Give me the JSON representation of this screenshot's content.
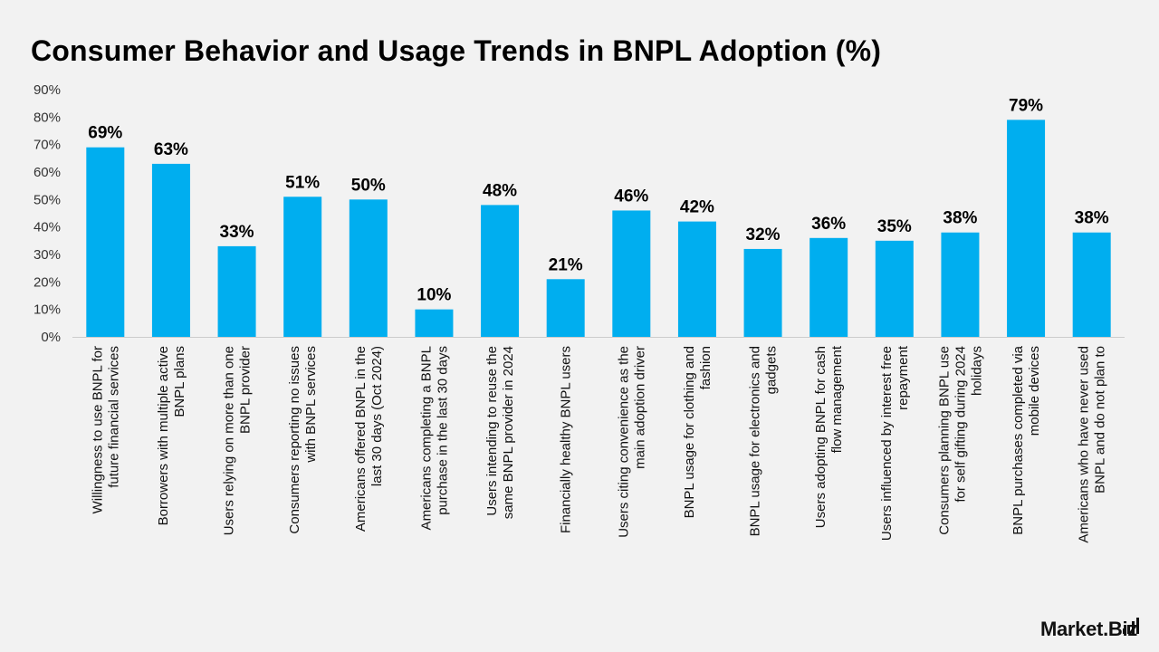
{
  "title": "Consumer Behavior and Usage Trends in BNPL Adoption (%)",
  "brand": {
    "name": "Market.Biz",
    "icon": "bar-chart-logo-icon"
  },
  "colors": {
    "bar": "#00aeef",
    "background": "#f2f2f2",
    "axis": "#cccccc"
  },
  "chart_data": {
    "type": "bar",
    "title": "Consumer Behavior and Usage Trends in BNPL Adoption (%)",
    "xlabel": "",
    "ylabel": "",
    "ylim": [
      0,
      90
    ],
    "yticks": [
      "0%",
      "10%",
      "20%",
      "30%",
      "40%",
      "50%",
      "60%",
      "70%",
      "80%",
      "90%"
    ],
    "grid": false,
    "legend": "none",
    "categories": [
      [
        "Willingness to use BNPL for",
        "future financial services"
      ],
      [
        "Borrowers with multiple active",
        "BNPL plans"
      ],
      [
        "Users relying on more than one",
        "BNPL provider"
      ],
      [
        "Consumers reporting no issues",
        "with BNPL services"
      ],
      [
        "Americans offered BNPL in the",
        "last 30 days (Oct 2024)"
      ],
      [
        "Americans completing a BNPL",
        "purchase in the last 30 days"
      ],
      [
        "Users intending to reuse the",
        "same BNPL provider in 2024"
      ],
      [
        "Financially healthy BNPL users"
      ],
      [
        "Users citing convenience as the",
        "main adoption driver"
      ],
      [
        "BNPL usage for clothing and",
        "fashion"
      ],
      [
        "BNPL usage for electronics and",
        "gadgets"
      ],
      [
        "Users adopting BNPL for cash",
        "flow management"
      ],
      [
        "Users influenced by interest free",
        "repayment"
      ],
      [
        "Consumers planning BNPL use",
        "for self gifting during 2024",
        "holidays"
      ],
      [
        "BNPL purchases completed via",
        "mobile devices"
      ],
      [
        "Americans who have never used",
        "BNPL and do not plan to"
      ]
    ],
    "values": [
      69,
      63,
      33,
      51,
      50,
      10,
      48,
      21,
      46,
      42,
      32,
      36,
      35,
      38,
      79,
      38
    ],
    "value_labels": [
      "69%",
      "63%",
      "33%",
      "51%",
      "50%",
      "10%",
      "48%",
      "21%",
      "46%",
      "42%",
      "32%",
      "36%",
      "35%",
      "38%",
      "79%",
      "38%"
    ]
  }
}
